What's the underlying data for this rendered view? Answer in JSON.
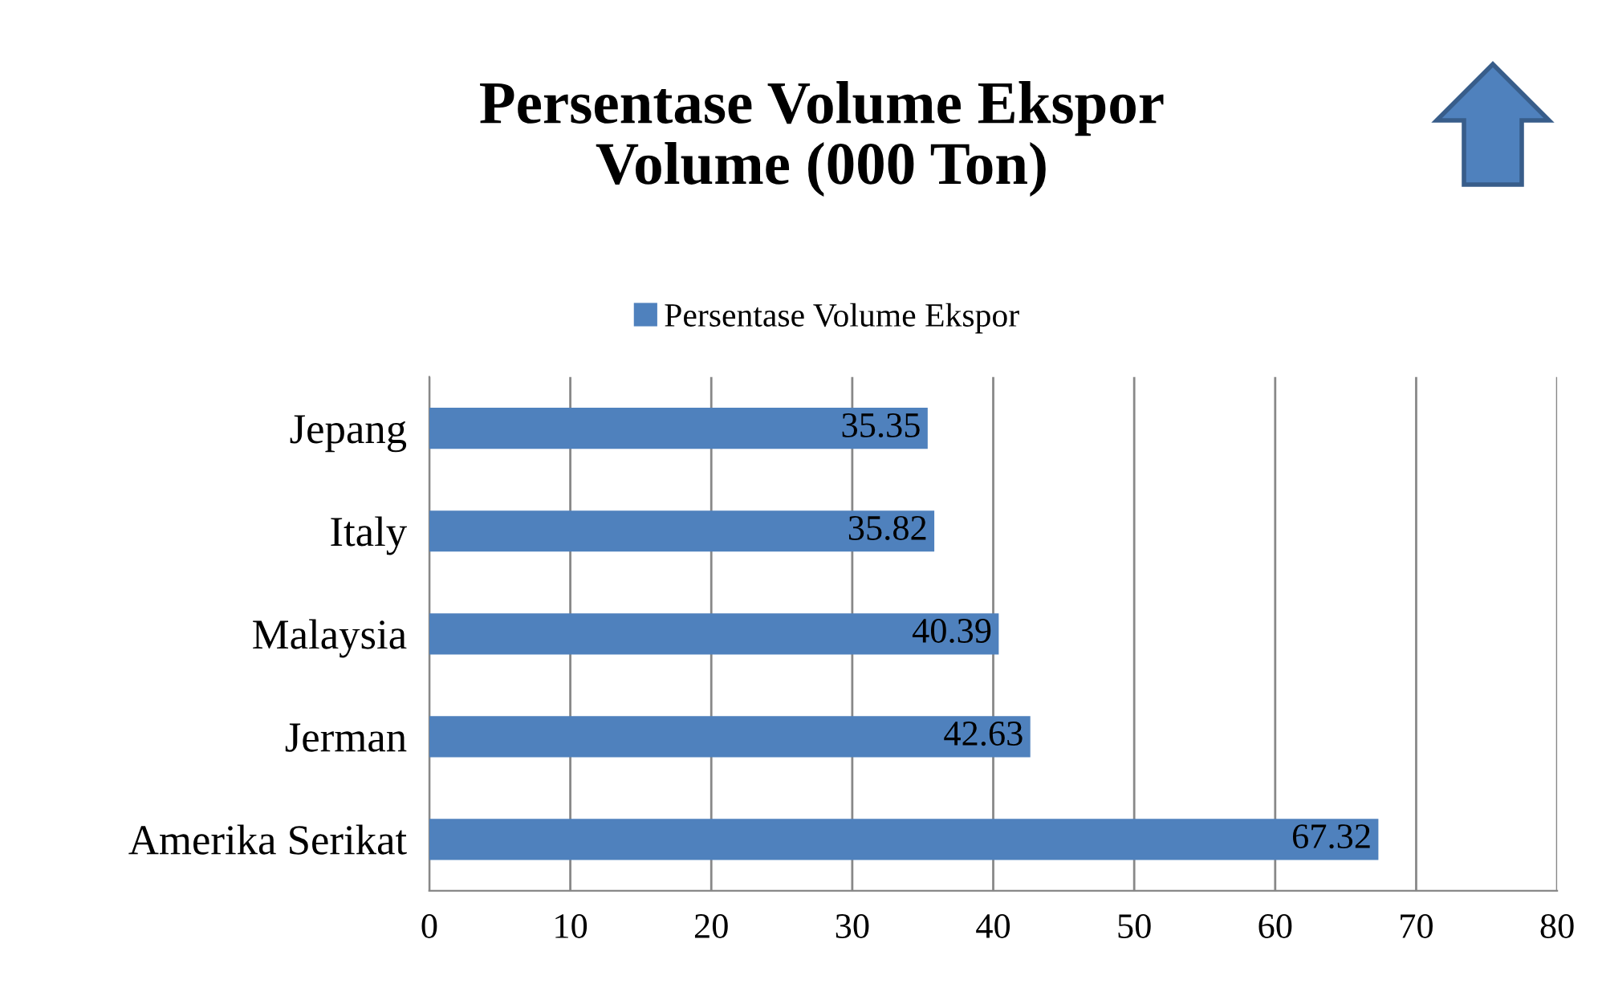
{
  "chart_data": {
    "type": "bar",
    "orientation": "horizontal",
    "title": "Persentase Volume Ekspor\nVolume (000 Ton)",
    "categories": [
      "Jepang",
      "Italy",
      "Malaysia",
      "Jerman",
      "Amerika Serikat"
    ],
    "series": [
      {
        "name": "Persentase Volume Ekspor",
        "color": "#4f81bd",
        "values": [
          35.35,
          35.82,
          40.39,
          42.63,
          67.32
        ]
      }
    ],
    "xlim": [
      0,
      80
    ],
    "xticks": [
      0,
      10,
      20,
      30,
      40,
      50,
      60,
      70,
      80
    ],
    "grid": "x",
    "legend": "top",
    "data_labels": true
  }
}
